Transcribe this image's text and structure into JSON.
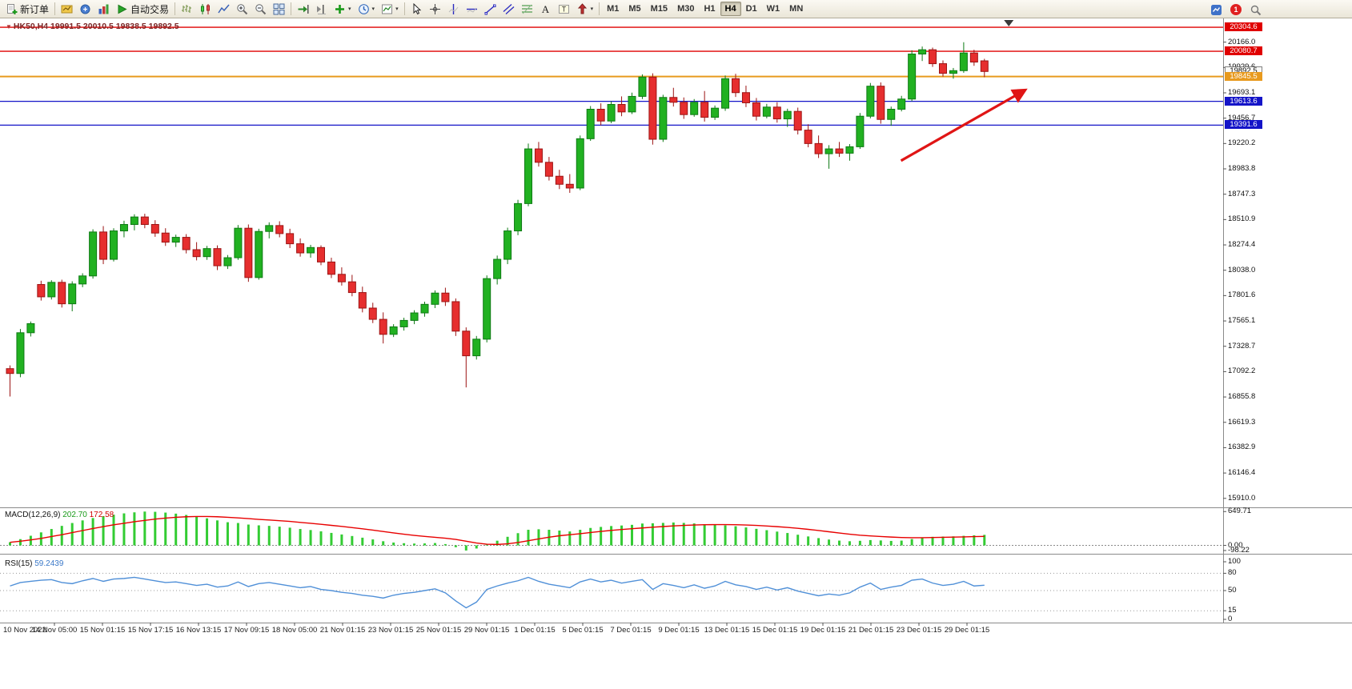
{
  "colors": {
    "red": "#e00000",
    "blue": "#1414c8",
    "orange": "#e89a1e",
    "bull": "#21b121",
    "bull_border": "#0e7a14",
    "bear": "#e62e2e",
    "bear_border": "#9c1414",
    "macd_hist": "#33cc33",
    "macd_signal": "#e80000",
    "rsi": "#5090d8",
    "arrow": "#e01515"
  },
  "toolbar": {
    "new_order_label": "新订单",
    "autotrading_label": "自动交易",
    "timeframes": {
      "items": [
        "M1",
        "M5",
        "M15",
        "M30",
        "H1",
        "H4",
        "D1",
        "W1",
        "MN"
      ],
      "active": "H4"
    },
    "notification_count": "1"
  },
  "chart": {
    "title": "HK50,H4 19991.5 20010.5 19838.5 19892.5",
    "price_badges": [
      {
        "text": "20304.6",
        "price": 20304.6,
        "style": "red",
        "line": true
      },
      {
        "text": "20080.7",
        "price": 20080.7,
        "style": "red",
        "line": true
      },
      {
        "text": "19892.5",
        "price": 19892.5,
        "style": "current",
        "line": false
      },
      {
        "text": "19845.5",
        "price": 19845.5,
        "style": "orange",
        "line": true
      },
      {
        "text": "19613.6",
        "price": 19613.6,
        "style": "blue",
        "line": true
      },
      {
        "text": "19391.6",
        "price": 19391.6,
        "style": "blue",
        "line": true
      }
    ]
  },
  "macd_panel": {
    "name": "MACD(12,26,9)",
    "value_main": "202.70",
    "value_signal": "172.58",
    "axis_max": "649.71",
    "axis_zero": "0.00",
    "axis_min": "-98.22"
  },
  "rsi_panel": {
    "name": "RSI(15)",
    "value": "59.2439",
    "axis_labels": [
      "100",
      "80",
      "50",
      "15",
      "0"
    ]
  },
  "time_axis": {
    "labels": [
      "10 Nov 2022",
      "14 Nov 05:00",
      "15 Nov 01:15",
      "15 Nov 17:15",
      "16 Nov 13:15",
      "17 Nov 09:15",
      "18 Nov 05:00",
      "21 Nov 01:15",
      "23 Nov 01:15",
      "25 Nov 01:15",
      "29 Nov 01:15",
      "1 Dec 01:15",
      "5 Dec 01:15",
      "7 Dec 01:15",
      "9 Dec 01:15",
      "13 Dec 01:15",
      "15 Dec 01:15",
      "19 Dec 01:15",
      "21 Dec 01:15",
      "23 Dec 01:15",
      "29 Dec 01:15"
    ]
  },
  "chart_data": {
    "type": "candlestick",
    "symbol": "HK50",
    "timeframe": "H4",
    "last_bar": {
      "open": 19991.5,
      "high": 20010.5,
      "low": 19838.5,
      "close": 19892.5
    },
    "price_axis_ticks": [
      20166.0,
      19929.6,
      19693.1,
      19456.7,
      19220.2,
      18983.8,
      18747.3,
      18510.9,
      18274.4,
      18038.0,
      17801.6,
      17565.1,
      17328.7,
      17092.2,
      16855.8,
      16619.3,
      16382.9,
      16146.4,
      15910.0
    ],
    "horizontal_lines": [
      {
        "price": 20304.6,
        "color": "red"
      },
      {
        "price": 20080.7,
        "color": "red"
      },
      {
        "price": 19845.5,
        "color": "orange"
      },
      {
        "price": 19613.6,
        "color": "blue"
      },
      {
        "price": 19391.6,
        "color": "blue"
      }
    ],
    "ohlc": [
      [
        17120,
        17150,
        16860,
        17075
      ],
      [
        17075,
        17490,
        17040,
        17455
      ],
      [
        17455,
        17560,
        17420,
        17540
      ],
      [
        17905,
        17940,
        17755,
        17790
      ],
      [
        17790,
        17945,
        17765,
        17925
      ],
      [
        17925,
        17950,
        17690,
        17725
      ],
      [
        17725,
        17935,
        17655,
        17910
      ],
      [
        17910,
        18010,
        17880,
        17985
      ],
      [
        17985,
        18420,
        17960,
        18395
      ],
      [
        18395,
        18450,
        18095,
        18140
      ],
      [
        18140,
        18430,
        18120,
        18405
      ],
      [
        18405,
        18500,
        18345,
        18465
      ],
      [
        18465,
        18560,
        18410,
        18535
      ],
      [
        18535,
        18565,
        18430,
        18465
      ],
      [
        18465,
        18505,
        18350,
        18385
      ],
      [
        18385,
        18430,
        18265,
        18300
      ],
      [
        18300,
        18370,
        18255,
        18345
      ],
      [
        18345,
        18375,
        18195,
        18230
      ],
      [
        18230,
        18300,
        18130,
        18165
      ],
      [
        18165,
        18265,
        18135,
        18240
      ],
      [
        18240,
        18270,
        18040,
        18080
      ],
      [
        18080,
        18180,
        18050,
        18155
      ],
      [
        18155,
        18460,
        18135,
        18430
      ],
      [
        18430,
        18465,
        17930,
        17970
      ],
      [
        17970,
        18425,
        17950,
        18400
      ],
      [
        18400,
        18485,
        18335,
        18455
      ],
      [
        18455,
        18495,
        18345,
        18380
      ],
      [
        18380,
        18425,
        18245,
        18285
      ],
      [
        18285,
        18335,
        18165,
        18200
      ],
      [
        18200,
        18275,
        18155,
        18250
      ],
      [
        18250,
        18270,
        18085,
        18115
      ],
      [
        18115,
        18155,
        17965,
        18000
      ],
      [
        18000,
        18065,
        17895,
        17930
      ],
      [
        17930,
        17995,
        17795,
        17830
      ],
      [
        17830,
        17885,
        17645,
        17685
      ],
      [
        17685,
        17735,
        17545,
        17580
      ],
      [
        17580,
        17645,
        17355,
        17440
      ],
      [
        17440,
        17535,
        17415,
        17510
      ],
      [
        17510,
        17595,
        17475,
        17570
      ],
      [
        17570,
        17665,
        17535,
        17640
      ],
      [
        17640,
        17745,
        17605,
        17720
      ],
      [
        17720,
        17850,
        17685,
        17825
      ],
      [
        17825,
        17875,
        17705,
        17745
      ],
      [
        17745,
        17775,
        17425,
        17470
      ],
      [
        17470,
        17505,
        16945,
        17240
      ],
      [
        17240,
        17425,
        17205,
        17395
      ],
      [
        17395,
        17990,
        17365,
        17960
      ],
      [
        17960,
        18175,
        17905,
        18140
      ],
      [
        18140,
        18435,
        18095,
        18405
      ],
      [
        18405,
        18695,
        18365,
        18660
      ],
      [
        18660,
        19220,
        18635,
        19170
      ],
      [
        19170,
        19235,
        19005,
        19045
      ],
      [
        19045,
        19095,
        18875,
        18915
      ],
      [
        18915,
        18975,
        18795,
        18840
      ],
      [
        18840,
        18935,
        18760,
        18805
      ],
      [
        18805,
        19295,
        18785,
        19265
      ],
      [
        19265,
        19570,
        19245,
        19540
      ],
      [
        19540,
        19595,
        19390,
        19430
      ],
      [
        19430,
        19615,
        19410,
        19585
      ],
      [
        19585,
        19660,
        19475,
        19515
      ],
      [
        19515,
        19695,
        19495,
        19660
      ],
      [
        19660,
        19865,
        19635,
        19840
      ],
      [
        19840,
        19875,
        19210,
        19260
      ],
      [
        19260,
        19675,
        19235,
        19650
      ],
      [
        19650,
        19740,
        19565,
        19605
      ],
      [
        19605,
        19650,
        19450,
        19490
      ],
      [
        19490,
        19635,
        19470,
        19605
      ],
      [
        19605,
        19710,
        19425,
        19465
      ],
      [
        19465,
        19575,
        19440,
        19550
      ],
      [
        19550,
        19855,
        19525,
        19825
      ],
      [
        19825,
        19870,
        19655,
        19695
      ],
      [
        19695,
        19760,
        19560,
        19600
      ],
      [
        19600,
        19645,
        19435,
        19475
      ],
      [
        19475,
        19590,
        19455,
        19560
      ],
      [
        19560,
        19605,
        19415,
        19450
      ],
      [
        19450,
        19545,
        19375,
        19520
      ],
      [
        19520,
        19555,
        19305,
        19345
      ],
      [
        19345,
        19400,
        19185,
        19220
      ],
      [
        19220,
        19295,
        19085,
        19125
      ],
      [
        19125,
        19205,
        18985,
        19170
      ],
      [
        19170,
        19235,
        19095,
        19130
      ],
      [
        19130,
        19215,
        19060,
        19190
      ],
      [
        19190,
        19505,
        19170,
        19475
      ],
      [
        19475,
        19785,
        19455,
        19755
      ],
      [
        19755,
        19790,
        19405,
        19445
      ],
      [
        19445,
        19565,
        19385,
        19540
      ],
      [
        19540,
        19665,
        19520,
        19635
      ],
      [
        19635,
        20090,
        19615,
        20055
      ],
      [
        20055,
        20125,
        19990,
        20095
      ],
      [
        20095,
        20115,
        19935,
        19965
      ],
      [
        19965,
        19995,
        19845,
        19875
      ],
      [
        19875,
        19925,
        19825,
        19900
      ],
      [
        19900,
        20165,
        19880,
        20065
      ],
      [
        20065,
        20095,
        19945,
        19980
      ],
      [
        19991.5,
        20010.5,
        19838.5,
        19892.5
      ]
    ],
    "indicators": {
      "macd": {
        "params": "12,26,9",
        "scale_max": 649.71,
        "scale_min": -98.22,
        "last_main": 202.7,
        "last_signal": 172.58,
        "histogram": [
          60,
          120,
          185,
          250,
          315,
          375,
          430,
          480,
          525,
          560,
          590,
          615,
          635,
          649.71,
          645,
          630,
          610,
          585,
          555,
          520,
          480,
          445,
          430,
          400,
          385,
          375,
          360,
          340,
          315,
          295,
          270,
          240,
          210,
          180,
          148,
          115,
          80,
          55,
          42,
          35,
          38,
          45,
          25,
          -35,
          -98.22,
          -60,
          15,
          90,
          165,
          235,
          300,
          310,
          300,
          285,
          268,
          300,
          335,
          355,
          372,
          382,
          395,
          420,
          425,
          432,
          440,
          432,
          422,
          408,
          394,
          385,
          368,
          345,
          318,
          292,
          265,
          238,
          205,
          172,
          140,
          112,
          92,
          80,
          88,
          102,
          95,
          86,
          92,
          122,
          152,
          165,
          170,
          174,
          184,
          194,
          202.7
        ],
        "signal": [
          60,
          80,
          105,
          135,
          170,
          205,
          245,
          285,
          325,
          360,
          395,
          425,
          455,
          480,
          505,
          525,
          540,
          550,
          555,
          555,
          550,
          540,
          528,
          515,
          500,
          488,
          475,
          460,
          442,
          424,
          405,
          385,
          364,
          342,
          318,
          293,
          266,
          240,
          215,
          192,
          172,
          155,
          138,
          115,
          80,
          45,
          22,
          18,
          30,
          55,
          90,
          125,
          158,
          185,
          205,
          225,
          248,
          268,
          288,
          305,
          320,
          335,
          350,
          362,
          374,
          384,
          392,
          397,
          399,
          399,
          397,
          392,
          384,
          373,
          360,
          345,
          328,
          308,
          286,
          262,
          238,
          215,
          196,
          182,
          170,
          160,
          152,
          148,
          148,
          151,
          155,
          159,
          163,
          168,
          172.58
        ]
      },
      "rsi": {
        "period": 15,
        "levels": [
          80,
          50,
          15
        ],
        "range": [
          0,
          100
        ],
        "last": 59.2439,
        "values": [
          58,
          64,
          66,
          68,
          69,
          64,
          62,
          67,
          71,
          66,
          70,
          71,
          73,
          70,
          67,
          64,
          65,
          62,
          59,
          61,
          56,
          58,
          65,
          57,
          62,
          64,
          61,
          58,
          55,
          57,
          52,
          50,
          47,
          45,
          42,
          40,
          37,
          42,
          45,
          47,
          50,
          53,
          46,
          32,
          20,
          30,
          52,
          58,
          63,
          67,
          73,
          66,
          61,
          58,
          55,
          65,
          70,
          65,
          68,
          63,
          66,
          69,
          52,
          62,
          59,
          55,
          60,
          54,
          58,
          66,
          60,
          57,
          52,
          56,
          51,
          55,
          49,
          45,
          41,
          44,
          42,
          46,
          56,
          63,
          52,
          56,
          59,
          68,
          70,
          63,
          59,
          61,
          66,
          58,
          59.24
        ]
      }
    },
    "annotations": {
      "trend_arrow": {
        "from_index": 86.3,
        "from_price": 19060,
        "to_index": 98.3,
        "to_price": 19720
      },
      "shift_marker_index": 96.7
    }
  }
}
